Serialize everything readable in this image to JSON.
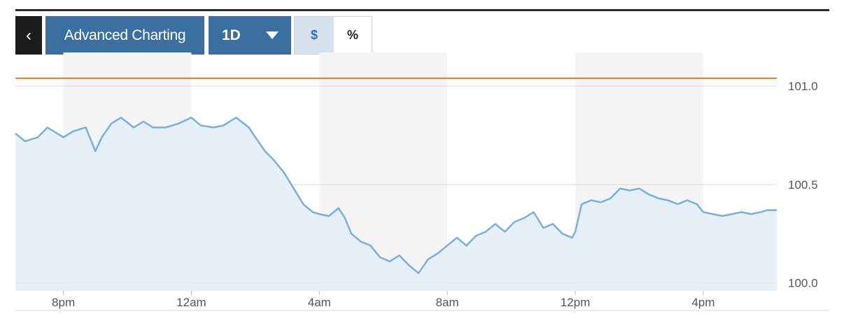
{
  "toolbar": {
    "back_icon": "chevron-left-icon",
    "back_glyph": "‹",
    "advanced_label": "Advanced Charting",
    "range_label": "1D",
    "range_caret_icon": "caret-down-icon",
    "unit_dollar": "$",
    "unit_percent": "%"
  },
  "colors": {
    "accent": "#3a6fa0",
    "line": "#7fb0dd",
    "area": "#e3edf5",
    "reference": "#e07a2e",
    "band": "#f4f4f4",
    "grid": "#d9d9d9"
  },
  "chart_data": {
    "type": "area",
    "x_ticks": [
      {
        "label": "8pm",
        "h": 20
      },
      {
        "label": "12am",
        "h": 24
      },
      {
        "label": "4am",
        "h": 28
      },
      {
        "label": "8am",
        "h": 32
      },
      {
        "label": "12pm",
        "h": 36
      },
      {
        "label": "4pm",
        "h": 40
      }
    ],
    "xlim": [
      18.5,
      42.3
    ],
    "y_ticks": [
      {
        "label": "101.0",
        "value": 101.0
      },
      {
        "label": "100.5",
        "value": 100.5
      },
      {
        "label": "100.0",
        "value": 100.0
      }
    ],
    "ylim": [
      99.96,
      101.1
    ],
    "reference_value": 101.04,
    "series": [
      {
        "x": [
          18.5,
          18.8,
          19.2,
          19.5,
          19.8,
          20.0,
          20.3,
          20.7,
          21.0,
          21.2,
          21.5,
          21.8,
          22.2,
          22.5,
          22.8,
          23.2,
          23.6,
          24.0,
          24.3,
          24.7,
          25.0,
          25.4,
          25.8,
          26.0,
          26.3,
          26.6,
          26.9,
          27.2,
          27.5,
          27.8,
          28.0,
          28.3,
          28.6,
          28.8,
          29.0,
          29.3,
          29.6,
          29.9,
          30.2,
          30.5,
          30.8,
          31.1,
          31.4,
          31.7,
          32.0,
          32.3,
          32.6,
          32.9,
          33.2,
          33.5,
          33.8,
          34.1,
          34.4,
          34.7,
          35.0,
          35.3,
          35.6,
          35.9,
          36.0,
          36.2,
          36.5,
          36.8,
          37.1,
          37.4,
          37.7,
          38.0,
          38.3,
          38.6,
          38.9,
          39.2,
          39.5,
          39.8,
          40.0,
          40.3,
          40.6,
          40.9,
          41.2,
          41.5,
          41.8,
          42.0,
          42.3
        ],
        "values": [
          100.76,
          100.72,
          100.74,
          100.79,
          100.76,
          100.74,
          100.77,
          100.79,
          100.67,
          100.74,
          100.81,
          100.84,
          100.79,
          100.82,
          100.79,
          100.79,
          100.81,
          100.84,
          100.8,
          100.79,
          100.8,
          100.84,
          100.79,
          100.74,
          100.67,
          100.62,
          100.56,
          100.48,
          100.4,
          100.36,
          100.35,
          100.34,
          100.38,
          100.33,
          100.25,
          100.21,
          100.19,
          100.13,
          100.11,
          100.14,
          100.09,
          100.05,
          100.12,
          100.15,
          100.19,
          100.23,
          100.19,
          100.24,
          100.26,
          100.3,
          100.26,
          100.31,
          100.33,
          100.36,
          100.28,
          100.3,
          100.25,
          100.23,
          100.26,
          100.4,
          100.42,
          100.41,
          100.43,
          100.48,
          100.47,
          100.48,
          100.45,
          100.43,
          100.42,
          100.4,
          100.42,
          100.4,
          100.36,
          100.35,
          100.34,
          100.35,
          100.36,
          100.35,
          100.36,
          100.37,
          100.37
        ]
      }
    ]
  }
}
